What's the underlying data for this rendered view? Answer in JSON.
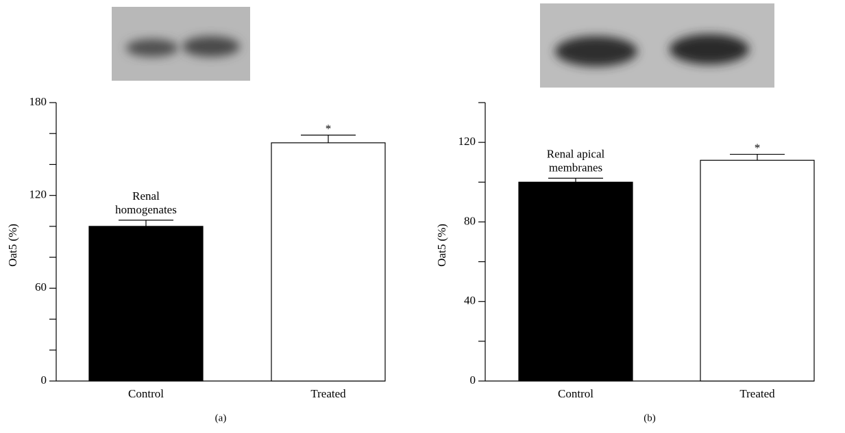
{
  "chart_data": [
    {
      "type": "bar",
      "ylabel": "Oat5 (%)",
      "panel_label": "(a)",
      "categories": [
        "Control",
        "Treated"
      ],
      "values": [
        100,
        154
      ],
      "errors": [
        4,
        5
      ],
      "colors": [
        "#000000",
        "#ffffff"
      ],
      "bar_labels": [
        null,
        "*"
      ],
      "annotation_lines": [
        "Renal",
        "homogenates"
      ],
      "ylim": [
        0,
        180
      ],
      "yticks": [
        0,
        60,
        120,
        180
      ],
      "minor_yticks": [
        20,
        40,
        80,
        100,
        140,
        160
      ]
    },
    {
      "type": "bar",
      "ylabel": "Oat5 (%)",
      "panel_label": "(b)",
      "categories": [
        "Control",
        "Treated"
      ],
      "values": [
        100,
        111
      ],
      "errors": [
        2,
        3
      ],
      "colors": [
        "#000000",
        "#ffffff"
      ],
      "bar_labels": [
        null,
        "*"
      ],
      "annotation_lines": [
        "Renal apical",
        "membranes"
      ],
      "ylim": [
        0,
        140
      ],
      "yticks": [
        0,
        40,
        80,
        120
      ],
      "minor_yticks": [
        20,
        60,
        100,
        140
      ]
    }
  ]
}
